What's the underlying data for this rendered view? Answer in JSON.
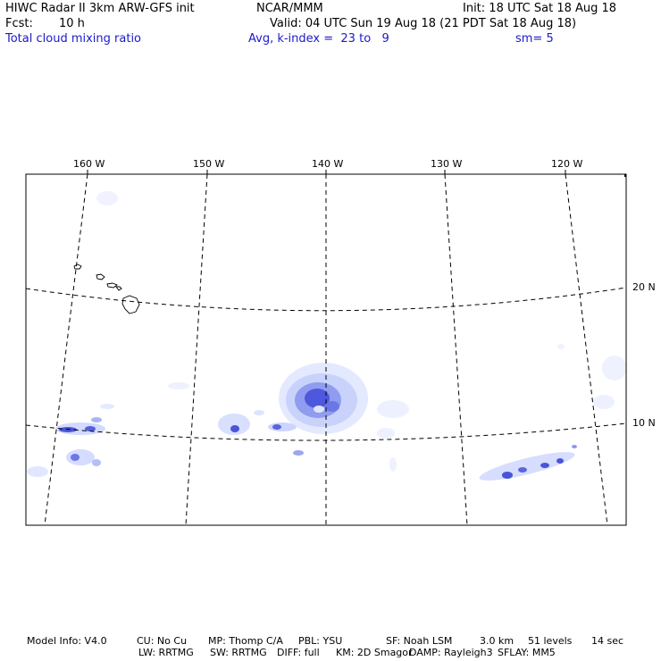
{
  "header": {
    "title": "HIWC Radar II 3km ARW-GFS init",
    "org": "NCAR/MMM",
    "init": "Init: 18 UTC Sat 18 Aug 18",
    "fcst_label": "Fcst:",
    "fcst_value": "10 h",
    "valid": "Valid: 04 UTC Sun 19 Aug 18 (21 PDT Sat 18 Aug 18)",
    "field": "Total cloud mixing ratio",
    "avg": "Avg, k-index =  23 to   9",
    "sm": "sm= 5"
  },
  "map": {
    "lon_labels": [
      "160 W",
      "150 W",
      "140 W",
      "130 W",
      "120 W"
    ],
    "lat_labels": [
      "20 N",
      "10 N"
    ],
    "colors": {
      "border": "#000000",
      "gridline": "#000000",
      "cloud_light": "#dde6ff",
      "cloud_mid": "#9aa7f0",
      "cloud_dark": "#3a44d8"
    }
  },
  "footer": {
    "line1": {
      "model_info": "Model Info: V4.0",
      "cu": "CU: No Cu",
      "mp": "MP: Thomp C/A",
      "pbl": "PBL: YSU",
      "sf": "SF: Noah LSM",
      "res": "3.0 km",
      "levels": "51 levels",
      "dt": "14 sec"
    },
    "line2": {
      "lw": "LW: RRTMG",
      "sw": "SW: RRTMG",
      "diff": "DIFF: full",
      "km": "KM: 2D Smagor",
      "damp": "DAMP: Rayleigh3",
      "sflay": "SFLAY: MM5"
    }
  }
}
